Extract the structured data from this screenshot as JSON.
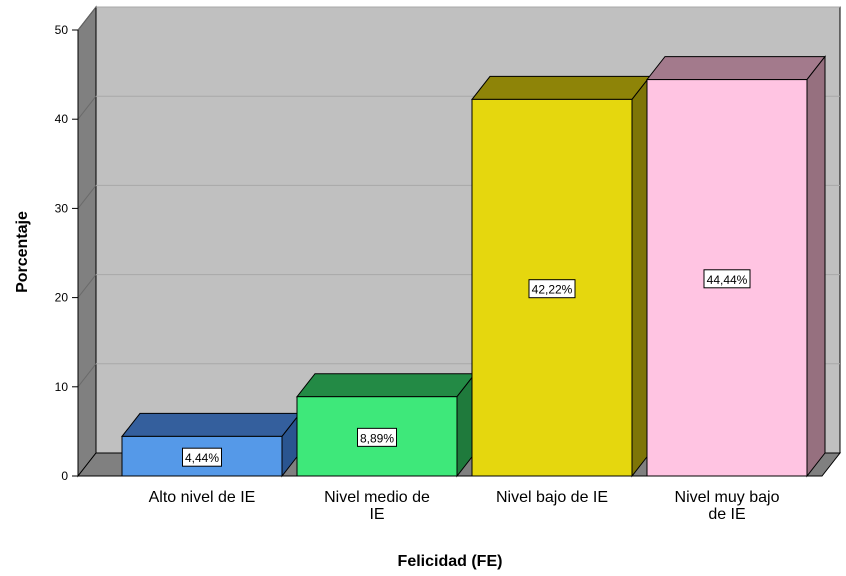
{
  "chart_data": {
    "type": "bar",
    "title": "",
    "xlabel": "Felicidad (FE)",
    "ylabel": "Porcentaje",
    "ylim": [
      0,
      50
    ],
    "yticks": [
      0,
      10,
      20,
      30,
      40,
      50
    ],
    "grid": true,
    "categories": [
      [
        "Alto nivel de IE"
      ],
      [
        "Nivel medio de",
        "IE"
      ],
      [
        "Nivel bajo de IE"
      ],
      [
        "Nivel muy bajo",
        "de IE"
      ]
    ],
    "values": [
      4.44,
      8.89,
      42.22,
      44.44
    ],
    "data_labels": [
      "4,44%",
      "8,89%",
      "42,22%",
      "44,44%"
    ],
    "colors": [
      {
        "front": "#5599e8",
        "top": "#345f9d",
        "side": "#2a5590"
      },
      {
        "front": "#3ee87a",
        "top": "#238a45",
        "side": "#1f7a3c"
      },
      {
        "front": "#e5d70e",
        "top": "#8e8408",
        "side": "#7e7507"
      },
      {
        "front": "#ffc4e2",
        "top": "#a37a8c",
        "side": "#96707f"
      }
    ],
    "background": {
      "wall": "#c0c0c0",
      "floor": "#808080",
      "gridline": "#a8a8a8"
    }
  }
}
